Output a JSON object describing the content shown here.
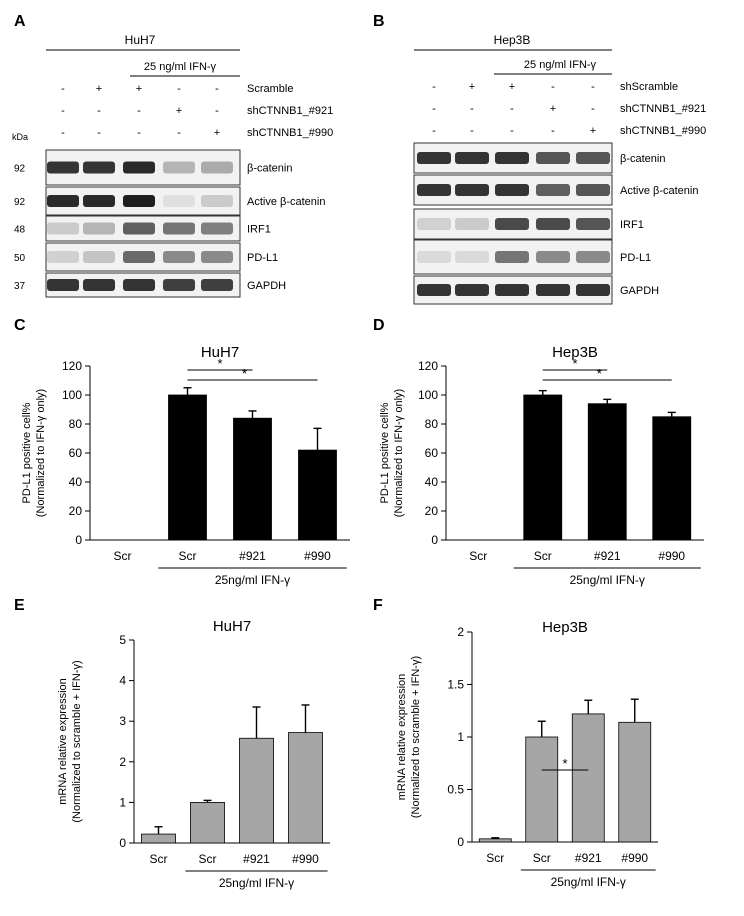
{
  "figure": {
    "panels": {
      "A": {
        "letter": "A",
        "cell_line": "HuH7",
        "treatment": "25 ng/ml IFN-γ",
        "kda_label": "kDa",
        "conditions": [
          {
            "label": "Scramble",
            "marks": [
              "-",
              "+",
              "+",
              "-",
              "-"
            ]
          },
          {
            "label": "shCTNNB1_#921",
            "marks": [
              "-",
              "-",
              "-",
              "+",
              "-"
            ]
          },
          {
            "label": "shCTNNB1_#990",
            "marks": [
              "-",
              "-",
              "-",
              "-",
              "+"
            ]
          }
        ],
        "blots": [
          {
            "protein": "β-catenin",
            "kda": "92",
            "intensity": [
              0.85,
              0.85,
              0.9,
              0.25,
              0.3
            ]
          },
          {
            "protein": "Active β-catenin",
            "kda": "92",
            "intensity": [
              0.9,
              0.9,
              0.95,
              0.05,
              0.15
            ]
          },
          {
            "protein": "IRF1",
            "kda": "48",
            "intensity": [
              0.15,
              0.25,
              0.65,
              0.55,
              0.5
            ]
          },
          {
            "protein": "PD-L1",
            "kda": "50",
            "intensity": [
              0.12,
              0.18,
              0.6,
              0.45,
              0.45
            ]
          },
          {
            "protein": "GAPDH",
            "kda": "37",
            "intensity": [
              0.85,
              0.85,
              0.85,
              0.8,
              0.8
            ]
          }
        ]
      },
      "B": {
        "letter": "B",
        "cell_line": "Hep3B",
        "treatment": "25 ng/ml IFN-γ",
        "conditions": [
          {
            "label": "shScramble",
            "marks": [
              "-",
              "+",
              "+",
              "-",
              "-"
            ]
          },
          {
            "label": "shCTNNB1_#921",
            "marks": [
              "-",
              "-",
              "-",
              "+",
              "-"
            ]
          },
          {
            "label": "shCTNNB1_#990",
            "marks": [
              "-",
              "-",
              "-",
              "-",
              "+"
            ]
          }
        ],
        "blots": [
          {
            "protein": "β-catenin",
            "intensity": [
              0.85,
              0.85,
              0.85,
              0.7,
              0.7
            ]
          },
          {
            "protein": "Active β-catenin",
            "intensity": [
              0.85,
              0.85,
              0.85,
              0.65,
              0.7
            ]
          },
          {
            "protein": "IRF1",
            "intensity": [
              0.12,
              0.15,
              0.75,
              0.75,
              0.7
            ]
          },
          {
            "protein": "PD-L1",
            "intensity": [
              0.08,
              0.08,
              0.55,
              0.45,
              0.45
            ]
          },
          {
            "protein": "GAPDH",
            "intensity": [
              0.85,
              0.85,
              0.85,
              0.85,
              0.85
            ]
          }
        ]
      },
      "C": {
        "letter": "C"
      },
      "D": {
        "letter": "D"
      },
      "E": {
        "letter": "E"
      },
      "F": {
        "letter": "F"
      }
    }
  },
  "chart_data": [
    {
      "panel": "C",
      "type": "bar",
      "title": "HuH7",
      "ylabel_line1": "PD-L1 positive cell%",
      "ylabel_line2": "(Normalized to IFN-γ only)",
      "categories": [
        "Scr",
        "Scr",
        "#921",
        "#990"
      ],
      "values": [
        0,
        100,
        84,
        62
      ],
      "errors": [
        0,
        5,
        5,
        15
      ],
      "ylim": [
        0,
        120
      ],
      "yticks": [
        "0",
        "20",
        "40",
        "60",
        "80",
        "100",
        "120"
      ],
      "bar_color": "#000000",
      "group_label": "25ng/ml IFN-γ",
      "significance": [
        {
          "from": 1,
          "to": 2,
          "label": "*"
        },
        {
          "from": 1,
          "to": 3,
          "label": "*"
        }
      ]
    },
    {
      "panel": "D",
      "type": "bar",
      "title": "Hep3B",
      "ylabel_line1": "PD-L1 positive cell%",
      "ylabel_line2": "(Normalized to IFN-γ only)",
      "categories": [
        "Scr",
        "Scr",
        "#921",
        "#990"
      ],
      "values": [
        0,
        100,
        94,
        85
      ],
      "errors": [
        0,
        3,
        3,
        3
      ],
      "ylim": [
        0,
        120
      ],
      "yticks": [
        "0",
        "20",
        "40",
        "60",
        "80",
        "100",
        "120"
      ],
      "bar_color": "#000000",
      "group_label": "25ng/ml IFN-γ",
      "significance": [
        {
          "from": 1,
          "to": 2,
          "label": "*"
        },
        {
          "from": 1,
          "to": 3,
          "label": "*"
        }
      ]
    },
    {
      "panel": "E",
      "type": "bar",
      "title": "HuH7",
      "ylabel_line1": "mRNA relative expression",
      "ylabel_line2": "(Normalized to scramble + IFN-γ)",
      "categories": [
        "Scr",
        "Scr",
        "#921",
        "#990"
      ],
      "values": [
        0.22,
        1.0,
        2.58,
        2.72
      ],
      "errors": [
        0.18,
        0.05,
        0.77,
        0.68
      ],
      "ylim": [
        0,
        5
      ],
      "yticks": [
        "0",
        "1",
        "2",
        "3",
        "4",
        "5"
      ],
      "bar_color": "#a6a6a6",
      "group_label": "25ng/ml IFN-γ",
      "significance": []
    },
    {
      "panel": "F",
      "type": "bar",
      "title": "Hep3B",
      "ylabel_line1": "mRNA relative expression",
      "ylabel_line2": "(Normalized to scramble + IFN-γ)",
      "categories": [
        "Scr",
        "Scr",
        "#921",
        "#990"
      ],
      "values": [
        0.03,
        1.0,
        1.22,
        1.14
      ],
      "errors": [
        0.01,
        0.15,
        0.13,
        0.22
      ],
      "ylim": [
        0,
        2
      ],
      "yticks": [
        "0",
        "0.5",
        "1",
        "1.5",
        "2"
      ],
      "bar_color": "#a6a6a6",
      "group_label": "25ng/ml IFN-γ",
      "significance": [
        {
          "from": 1,
          "to": 2,
          "label": "*"
        }
      ]
    }
  ]
}
